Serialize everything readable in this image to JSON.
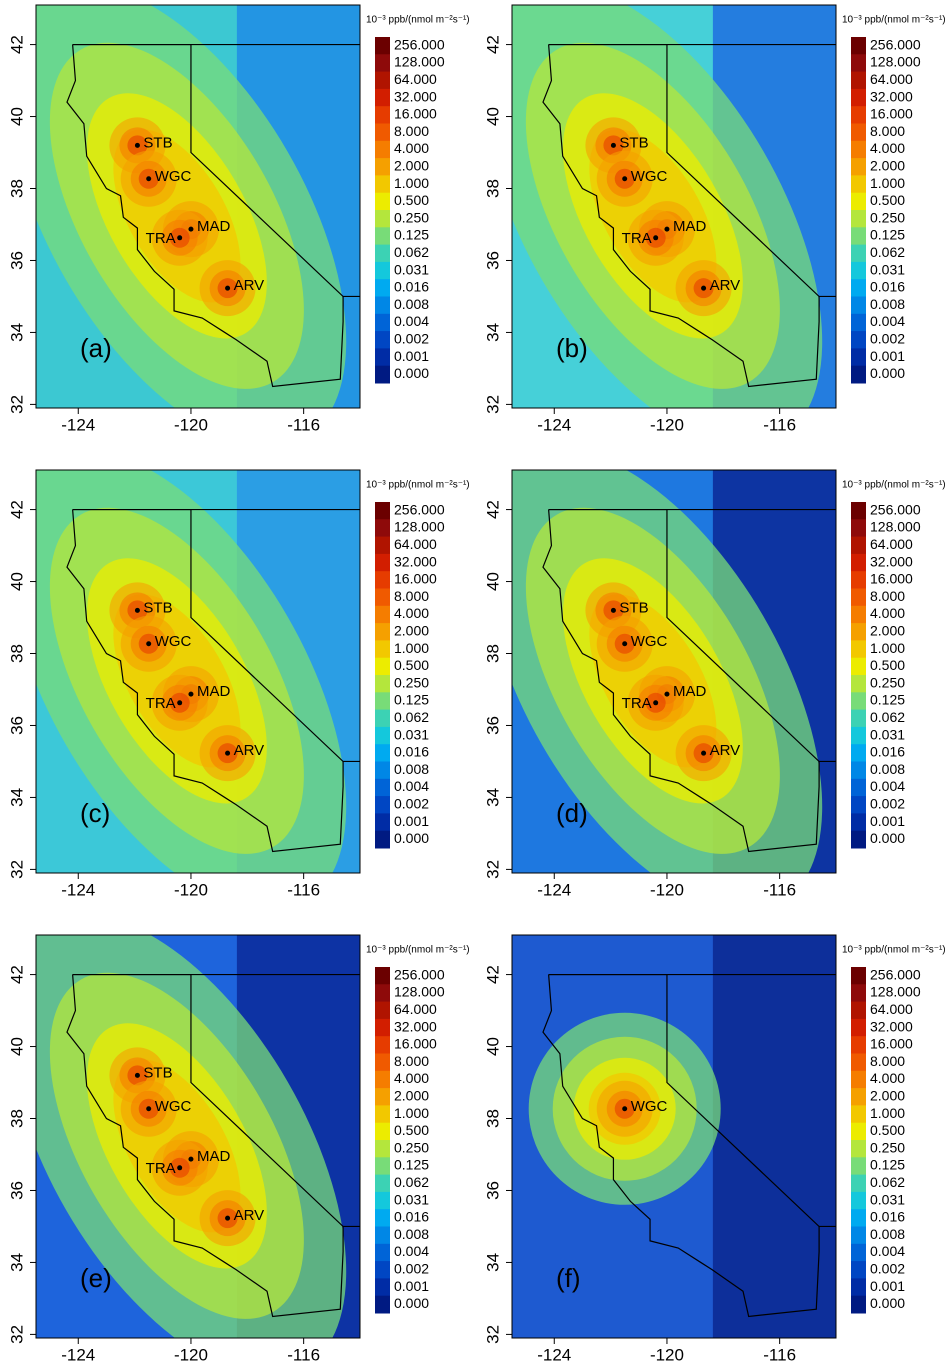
{
  "unit_label": "10⁻³ ppb/(nmol m⁻²s⁻¹)",
  "xlim": [
    -125.5,
    -114
  ],
  "ylim": [
    31.9,
    43.1
  ],
  "xticks": [
    -124,
    -120,
    -116
  ],
  "yticks": [
    32,
    34,
    36,
    38,
    40,
    42
  ],
  "colorbar": {
    "labels": [
      "256.000",
      "128.000",
      "64.000",
      "32.000",
      "16.000",
      "8.000",
      "4.000",
      "2.000",
      "1.000",
      "0.500",
      "0.250",
      "0.125",
      "0.062",
      "0.031",
      "0.016",
      "0.008",
      "0.004",
      "0.002",
      "0.001",
      "0.000"
    ],
    "colors": [
      "#6b0000",
      "#8e0a0a",
      "#b01400",
      "#d21e00",
      "#e63c00",
      "#f05a00",
      "#f57d00",
      "#f5a000",
      "#f2c800",
      "#ecec00",
      "#b4e63c",
      "#78dc78",
      "#3cd2b4",
      "#14c8dc",
      "#00aaf0",
      "#0087e6",
      "#0064d7",
      "#0046c3",
      "#002ca5",
      "#001a82"
    ]
  },
  "stations": [
    {
      "name": "STB",
      "lon": -121.9,
      "lat": 39.2
    },
    {
      "name": "WGC",
      "lon": -121.5,
      "lat": 38.27
    },
    {
      "name": "MAD",
      "lon": -120.0,
      "lat": 36.87
    },
    {
      "name": "TRA",
      "lon": -120.4,
      "lat": 36.63
    },
    {
      "name": "ARV",
      "lon": -118.7,
      "lat": 35.23
    }
  ],
  "panels": [
    {
      "label": "(a)",
      "stations": [
        0,
        1,
        2,
        3,
        4
      ]
    },
    {
      "label": "(b)",
      "stations": [
        0,
        1,
        2,
        3,
        4
      ]
    },
    {
      "label": "(c)",
      "stations": [
        0,
        1,
        2,
        3,
        4
      ]
    },
    {
      "label": "(d)",
      "stations": [
        0,
        1,
        2,
        3,
        4
      ]
    },
    {
      "label": "(e)",
      "stations": [
        0,
        1,
        2,
        3,
        4
      ]
    },
    {
      "label": "(f)",
      "stations": [
        1
      ]
    }
  ]
}
